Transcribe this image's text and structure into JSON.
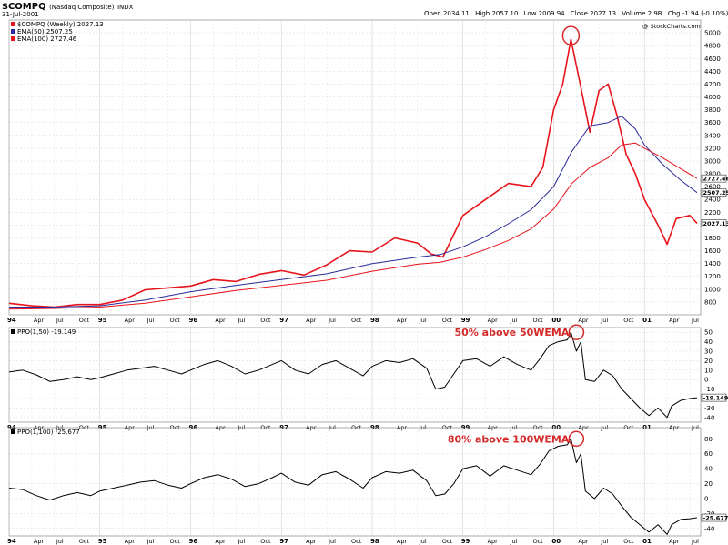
{
  "header": {
    "symbol": "$COMPQ",
    "name": "(Nasdaq Composite)",
    "exchange": "INDX",
    "date": "31-Jul-2001",
    "ohlc": [
      {
        "label": "Open",
        "value": "2034.11"
      },
      {
        "label": "High",
        "value": "2057.10"
      },
      {
        "label": "Low",
        "value": "2009.94"
      },
      {
        "label": "Close",
        "value": "2027.13"
      },
      {
        "label": "Volume",
        "value": "2.9B"
      },
      {
        "label": "Chg",
        "value": "-1.94 (-0.10%)"
      }
    ],
    "watermark": "@ StockCharts.com"
  },
  "chart_data": [
    {
      "type": "line",
      "title": "$COMPQ (Weekly) 2027.13",
      "legend": [
        {
          "name": "$COMPQ (Weekly)",
          "value": "2027.13",
          "color": "#e8141c"
        },
        {
          "name": "EMA(50)",
          "value": "2507.25",
          "color": "#2a2a9a"
        },
        {
          "name": "EMA(100)",
          "value": "2727.46",
          "color": "#e8141c"
        }
      ],
      "y_ticks": [
        "5000",
        "4800",
        "4600",
        "4400",
        "4200",
        "4000",
        "3800",
        "3600",
        "3400",
        "3200",
        "3000",
        "2800",
        "2600",
        "2400",
        "2200",
        "2000",
        "1800",
        "1600",
        "1400",
        "1200",
        "1000",
        "800"
      ],
      "ylim": [
        600,
        5200
      ],
      "axis_badges": [
        {
          "label": "2727.46",
          "value": 2727.46
        },
        {
          "label": "2507.25",
          "value": 2507.25
        },
        {
          "label": "2027.13",
          "value": 2027.13
        }
      ],
      "series": [
        {
          "name": "$COMPQ (Weekly)",
          "color": "#e8141c",
          "x": [
            1994.0,
            1994.25,
            1994.5,
            1994.75,
            1995.0,
            1995.25,
            1995.5,
            1995.75,
            1996.0,
            1996.25,
            1996.5,
            1996.75,
            1997.0,
            1997.25,
            1997.5,
            1997.75,
            1998.0,
            1998.25,
            1998.5,
            1998.65,
            1998.78,
            1999.0,
            1999.25,
            1999.5,
            1999.75,
            1999.88,
            2000.0,
            2000.1,
            2000.19,
            2000.3,
            2000.4,
            2000.5,
            2000.6,
            2000.7,
            2000.8,
            2000.9,
            2001.0,
            2001.15,
            2001.25,
            2001.35,
            2001.5,
            2001.58
          ],
          "values": [
            780,
            740,
            720,
            760,
            760,
            830,
            990,
            1020,
            1050,
            1150,
            1120,
            1230,
            1290,
            1220,
            1380,
            1600,
            1580,
            1800,
            1720,
            1550,
            1500,
            2150,
            2400,
            2650,
            2600,
            2900,
            3800,
            4200,
            4900,
            4150,
            3450,
            4100,
            4200,
            3700,
            3100,
            2800,
            2400,
            2000,
            1700,
            2100,
            2150,
            2027.13
          ]
        },
        {
          "name": "EMA(50)",
          "color": "#2a2a9a",
          "x": [
            1994.0,
            1994.5,
            1995.0,
            1995.5,
            1996.0,
            1996.5,
            1997.0,
            1997.5,
            1998.0,
            1998.5,
            1998.75,
            1999.0,
            1999.25,
            1999.5,
            1999.75,
            2000.0,
            2000.2,
            2000.4,
            2000.6,
            2000.75,
            2000.9,
            2001.0,
            2001.2,
            2001.4,
            2001.58
          ],
          "values": [
            720,
            720,
            740,
            830,
            960,
            1060,
            1150,
            1240,
            1400,
            1500,
            1540,
            1660,
            1820,
            2020,
            2240,
            2600,
            3150,
            3550,
            3600,
            3700,
            3500,
            3250,
            2950,
            2700,
            2507.25
          ]
        },
        {
          "name": "EMA(100)",
          "color": "#e8141c",
          "x": [
            1994.0,
            1994.5,
            1995.0,
            1995.5,
            1996.0,
            1996.5,
            1997.0,
            1997.5,
            1998.0,
            1998.5,
            1998.75,
            1999.0,
            1999.25,
            1999.5,
            1999.75,
            2000.0,
            2000.2,
            2000.4,
            2000.6,
            2000.75,
            2000.9,
            2001.0,
            2001.2,
            2001.4,
            2001.58
          ],
          "values": [
            690,
            700,
            720,
            780,
            880,
            980,
            1060,
            1140,
            1280,
            1390,
            1420,
            1500,
            1620,
            1760,
            1940,
            2250,
            2650,
            2900,
            3050,
            3250,
            3280,
            3200,
            3050,
            2880,
            2727.46
          ]
        }
      ]
    },
    {
      "type": "line",
      "title": "PPO(1,50) -19.149",
      "legend": [
        {
          "name": "PPO(1,50)",
          "value": "-19.149",
          "color": "#000000"
        }
      ],
      "y_ticks": [
        "50",
        "40",
        "30",
        "20",
        "10",
        "0",
        "-10",
        "-20",
        "-30",
        "-40"
      ],
      "ylim": [
        -45,
        55
      ],
      "axis_badges": [
        {
          "label": "-19.149",
          "value": -19.149
        }
      ],
      "annotation": {
        "text": "50% above 50WEMA",
        "x": 2000.19,
        "y": 50
      },
      "series": [
        {
          "name": "PPO(1,50)",
          "color": "#000000",
          "x": [
            1994.0,
            1994.15,
            1994.3,
            1994.45,
            1994.6,
            1994.75,
            1994.9,
            1995.0,
            1995.15,
            1995.3,
            1995.45,
            1995.6,
            1995.75,
            1995.9,
            1996.0,
            1996.15,
            1996.3,
            1996.45,
            1996.6,
            1996.75,
            1996.9,
            1997.0,
            1997.15,
            1997.3,
            1997.45,
            1997.6,
            1997.75,
            1997.9,
            1998.0,
            1998.15,
            1998.3,
            1998.45,
            1998.6,
            1998.7,
            1998.8,
            1998.9,
            1999.0,
            1999.15,
            1999.3,
            1999.45,
            1999.6,
            1999.75,
            1999.85,
            1999.95,
            2000.05,
            2000.15,
            2000.19,
            2000.25,
            2000.3,
            2000.35,
            2000.45,
            2000.55,
            2000.65,
            2000.75,
            2000.85,
            2000.95,
            2001.05,
            2001.15,
            2001.25,
            2001.3,
            2001.4,
            2001.5,
            2001.58
          ],
          "values": [
            8,
            10,
            5,
            -2,
            0,
            3,
            0,
            2,
            6,
            10,
            12,
            14,
            10,
            6,
            10,
            16,
            20,
            14,
            6,
            10,
            16,
            20,
            10,
            6,
            16,
            20,
            12,
            4,
            14,
            20,
            18,
            22,
            12,
            -10,
            -8,
            6,
            20,
            22,
            14,
            24,
            16,
            10,
            22,
            36,
            40,
            42,
            50,
            30,
            40,
            0,
            -2,
            10,
            4,
            -10,
            -20,
            -30,
            -38,
            -30,
            -40,
            -28,
            -22,
            -20,
            -19.149
          ]
        }
      ]
    },
    {
      "type": "line",
      "title": "PPO(1,100) -25.677",
      "legend": [
        {
          "name": "PPO(1,100)",
          "value": "-25.677",
          "color": "#000000"
        }
      ],
      "y_ticks": [
        "80",
        "60",
        "40",
        "20",
        "0",
        "-20",
        "-40"
      ],
      "ylim": [
        -50,
        95
      ],
      "axis_badges": [
        {
          "label": "-25.677",
          "value": -25.677
        }
      ],
      "annotation": {
        "text": "80% above 100WEMA",
        "x": 2000.19,
        "y": 80
      },
      "series": [
        {
          "name": "PPO(1,100)",
          "color": "#000000",
          "x": [
            1994.0,
            1994.15,
            1994.3,
            1994.45,
            1994.6,
            1994.75,
            1994.9,
            1995.0,
            1995.15,
            1995.3,
            1995.45,
            1995.6,
            1995.75,
            1995.9,
            1996.0,
            1996.15,
            1996.3,
            1996.45,
            1996.6,
            1996.75,
            1996.9,
            1997.0,
            1997.15,
            1997.3,
            1997.45,
            1997.6,
            1997.75,
            1997.9,
            1998.0,
            1998.15,
            1998.3,
            1998.45,
            1998.6,
            1998.7,
            1998.8,
            1998.9,
            1999.0,
            1999.15,
            1999.3,
            1999.45,
            1999.6,
            1999.75,
            1999.85,
            1999.95,
            2000.05,
            2000.15,
            2000.19,
            2000.25,
            2000.3,
            2000.35,
            2000.45,
            2000.55,
            2000.65,
            2000.75,
            2000.85,
            2000.95,
            2001.05,
            2001.15,
            2001.25,
            2001.3,
            2001.4,
            2001.5,
            2001.58
          ],
          "values": [
            14,
            12,
            4,
            -2,
            4,
            8,
            4,
            10,
            14,
            18,
            22,
            24,
            18,
            14,
            20,
            28,
            32,
            26,
            16,
            20,
            28,
            34,
            22,
            18,
            32,
            36,
            26,
            14,
            28,
            36,
            34,
            38,
            24,
            4,
            6,
            20,
            40,
            44,
            30,
            44,
            38,
            32,
            46,
            64,
            70,
            72,
            80,
            48,
            60,
            10,
            0,
            14,
            6,
            -10,
            -25,
            -35,
            -45,
            -35,
            -48,
            -35,
            -28,
            -27,
            -25.677
          ]
        }
      ]
    }
  ],
  "x_axis": {
    "domain": [
      1994.0,
      2001.62
    ],
    "ticks": [
      {
        "label": "94",
        "x": 1994.0,
        "bold": true
      },
      {
        "label": "Apr",
        "x": 1994.25
      },
      {
        "label": "Jul",
        "x": 1994.5
      },
      {
        "label": "Oct",
        "x": 1994.75
      },
      {
        "label": "95",
        "x": 1995.0,
        "bold": true
      },
      {
        "label": "Apr",
        "x": 1995.25
      },
      {
        "label": "Jul",
        "x": 1995.5
      },
      {
        "label": "Oct",
        "x": 1995.75
      },
      {
        "label": "96",
        "x": 1996.0,
        "bold": true
      },
      {
        "label": "Apr",
        "x": 1996.25
      },
      {
        "label": "Jul",
        "x": 1996.5
      },
      {
        "label": "Oct",
        "x": 1996.75
      },
      {
        "label": "97",
        "x": 1997.0,
        "bold": true
      },
      {
        "label": "Apr",
        "x": 1997.25
      },
      {
        "label": "Jul",
        "x": 1997.5
      },
      {
        "label": "Oct",
        "x": 1997.75
      },
      {
        "label": "98",
        "x": 1998.0,
        "bold": true
      },
      {
        "label": "Apr",
        "x": 1998.25
      },
      {
        "label": "Jul",
        "x": 1998.5
      },
      {
        "label": "Oct",
        "x": 1998.75
      },
      {
        "label": "99",
        "x": 1999.0,
        "bold": true
      },
      {
        "label": "Apr",
        "x": 1999.25
      },
      {
        "label": "Jul",
        "x": 1999.5
      },
      {
        "label": "Oct",
        "x": 1999.75
      },
      {
        "label": "00",
        "x": 2000.0,
        "bold": true
      },
      {
        "label": "Apr",
        "x": 2000.25
      },
      {
        "label": "Jul",
        "x": 2000.5
      },
      {
        "label": "Oct",
        "x": 2000.75
      },
      {
        "label": "01",
        "x": 2001.0,
        "bold": true
      },
      {
        "label": "Apr",
        "x": 2001.25
      },
      {
        "label": "Jul",
        "x": 2001.5
      }
    ]
  }
}
